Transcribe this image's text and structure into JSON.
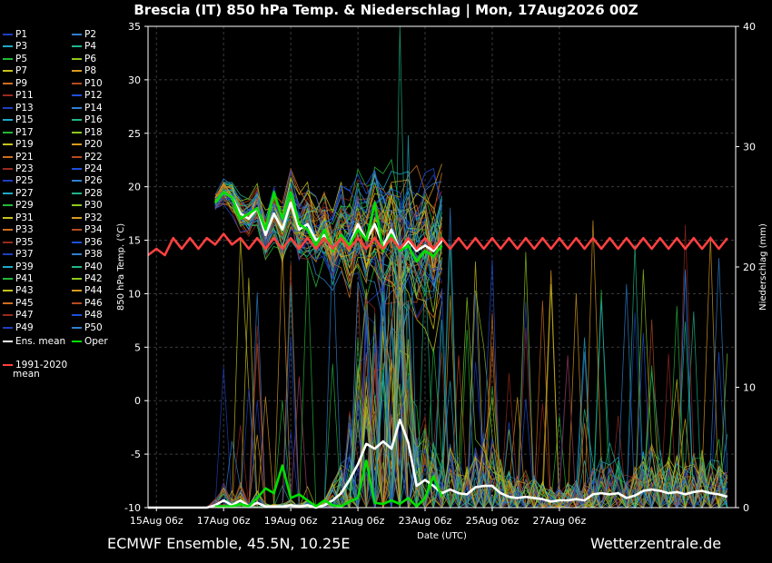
{
  "header": {
    "title": "Brescia  (IT)  850 hPa Temp. & Niederschlag | Mon, 17Aug2026 00Z"
  },
  "footer": {
    "left": "ECMWF Ensemble, 45.5N, 10.25E",
    "right": "Wetterzentrale.de"
  },
  "colors": {
    "background": "#000000",
    "ens_mean": "#ffffff",
    "oper": "#00e000",
    "climate": "#ff4040",
    "member_palette": [
      "#1f3fbf",
      "#2f7fd0",
      "#1fa9c8",
      "#1fb58a",
      "#24b838",
      "#8fc81f",
      "#c8c21f",
      "#d99b1f",
      "#cf6e1f",
      "#b84a1f",
      "#9a2a1f",
      "#1f4fd8"
    ]
  },
  "legend": {
    "members": [
      "P1",
      "P2",
      "P3",
      "P4",
      "P5",
      "P6",
      "P7",
      "P8",
      "P9",
      "P10",
      "P11",
      "P12",
      "P13",
      "P14",
      "P15",
      "P16",
      "P17",
      "P18",
      "P19",
      "P20",
      "P21",
      "P22",
      "P23",
      "P24",
      "P25",
      "P26",
      "P27",
      "P28",
      "P29",
      "P30",
      "P31",
      "P32",
      "P33",
      "P34",
      "P35",
      "P36",
      "P37",
      "P38",
      "P39",
      "P40",
      "P41",
      "P42",
      "P43",
      "P44",
      "P45",
      "P46",
      "P47",
      "P48",
      "P49",
      "P50"
    ],
    "ens_mean": "Ens. mean",
    "oper": "Oper",
    "climate_line1": "1991-2020",
    "climate_line2": "mean"
  },
  "chart_data": {
    "type": "line",
    "title": "Brescia  (IT)  850 hPa Temp. & Niederschlag | Mon, 17Aug2026 00Z",
    "xlabel": "Date (UTC)",
    "ylabel": "850 hPa Temp. (°C)",
    "y2label": "Niederschlag (mm)",
    "ylim": [
      -10,
      35
    ],
    "y2lim": [
      0,
      40
    ],
    "xlim": [
      "2026-08-15 00:00",
      "2026-09-01 12:00"
    ],
    "x_ticks": [
      "15Aug 06z",
      "17Aug 06z",
      "19Aug 06z",
      "21Aug 06z",
      "23Aug 06z",
      "25Aug 06z",
      "27Aug 06z"
    ],
    "y_ticks": [
      -10,
      -5,
      0,
      5,
      10,
      15,
      20,
      25,
      30,
      35
    ],
    "y2_ticks": [
      0,
      10,
      20,
      30,
      40
    ],
    "time_step_hours": 6,
    "series": [
      {
        "name": "Ens. mean",
        "axis": "temp",
        "start": "2026-08-17 00:00",
        "values": [
          18.5,
          19.5,
          19,
          17.5,
          17,
          18,
          15.5,
          17.5,
          16,
          18.5,
          16,
          16.5,
          15,
          15.5,
          14,
          15.5,
          14.5,
          16.5,
          15,
          16.5,
          14.5,
          16,
          14,
          15,
          14,
          14.5,
          14,
          15
        ]
      },
      {
        "name": "Oper",
        "axis": "temp",
        "start": "2026-08-17 00:00",
        "values": [
          18.5,
          19.5,
          19,
          17,
          17.5,
          18,
          16,
          19.5,
          17,
          19.5,
          16.5,
          16,
          14.5,
          16,
          14,
          15.5,
          14.5,
          16,
          15,
          18.5,
          14,
          15.5,
          14,
          14.5,
          13,
          14,
          13.5,
          14.5
        ]
      },
      {
        "name": "1991-2020 mean",
        "axis": "temp",
        "start": "2026-08-15 00:00",
        "values": [
          13.6,
          14.2,
          13.6,
          15.2,
          14.2,
          15.2,
          14.2,
          15.2,
          14.6,
          15.6,
          14.6,
          15.2,
          14.2,
          15.2,
          14.2,
          15.2,
          14.2,
          15.2,
          14.2,
          15.2,
          14.2,
          15.2,
          14.2,
          15.2,
          14.2,
          15.2,
          14.2,
          15.2,
          14.2,
          15.2,
          14.2,
          15.2,
          14.2,
          15.2,
          14.2,
          15.2,
          14.2,
          15.2,
          14.2,
          15.2,
          14.2,
          15.2,
          14.2,
          15.2,
          14.2,
          15.2,
          14.2,
          15.2,
          14.2,
          15.2,
          14.2,
          15.2,
          14.2,
          15.2,
          14.2,
          15.2,
          14.2,
          15.2,
          14.2,
          15.2,
          14.2,
          15.2,
          14.2,
          15.2,
          14.2,
          15.2,
          14.2,
          15.2,
          14.2,
          15.2
        ]
      },
      {
        "name": "Ens. mean",
        "axis": "precip",
        "start": "2026-08-15 00:00",
        "values": [
          0,
          0,
          0,
          0,
          0,
          0,
          0,
          0,
          0.2,
          0.6,
          0.2,
          0.6,
          0.1,
          0.4,
          0.1,
          0.1,
          0.1,
          0.2,
          0.1,
          0.2,
          0,
          0.2,
          0.6,
          1.2,
          2.3,
          3.6,
          5.3,
          4.9,
          5.5,
          4.9,
          7.3,
          5.4,
          1.8,
          2.3,
          1.8,
          1.2,
          1.5,
          1.2,
          1.1,
          1.7,
          1.8,
          1.8,
          1.2,
          0.9,
          0.8,
          0.9,
          0.8,
          0.7,
          0.5,
          0.6,
          0.6,
          0.7,
          0.6,
          1.1,
          1.2,
          1.1,
          1.2,
          0.8,
          1.0,
          1.4,
          1.5,
          1.4,
          1.2,
          1.3,
          1.1,
          1.3,
          1.4,
          1.2,
          1.1,
          0.9
        ]
      },
      {
        "name": "Oper",
        "axis": "precip",
        "start": "2026-08-17 00:00",
        "values": [
          0.1,
          0.1,
          0.1,
          0.3,
          0.1,
          0.8,
          1.6,
          1.2,
          3.5,
          0.8,
          1.1,
          0.6,
          0.1,
          0.6,
          0.2,
          0.1,
          0.5,
          0.8,
          3.9,
          0.4,
          0.3,
          0.6,
          0.3,
          0.8,
          0.1,
          0.8,
          2.6,
          0.9
        ]
      }
    ]
  }
}
